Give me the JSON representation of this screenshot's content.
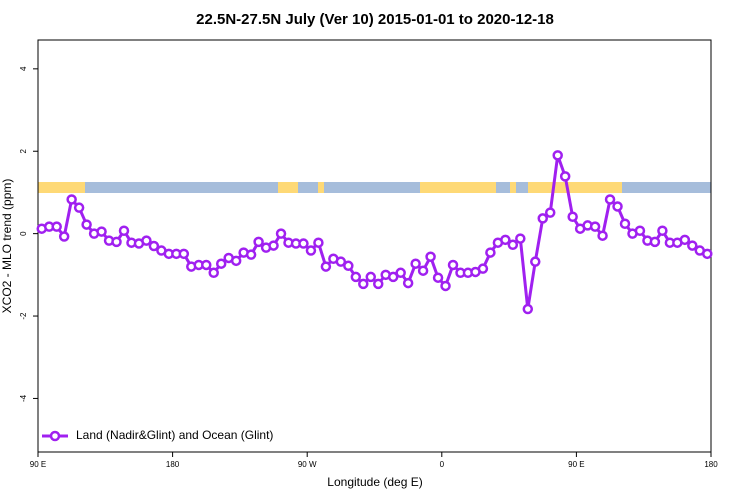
{
  "chart_data": {
    "type": "line",
    "title": "22.5N-27.5N July (Ver 10)   2015-01-01 to 2020-12-18",
    "x_label": "Longitude (deg E)",
    "y_label": "XCO2 - MLO trend (ppm)",
    "x": [
      92.5,
      97.5,
      102.5,
      107.5,
      112.5,
      117.5,
      122.5,
      127.5,
      132.5,
      137.5,
      142.5,
      147.5,
      152.5,
      157.5,
      162.5,
      167.5,
      172.5,
      177.5,
      182.5,
      187.5,
      192.5,
      197.5,
      202.5,
      207.5,
      212.5,
      217.5,
      222.5,
      227.5,
      232.5,
      237.5,
      242.5,
      247.5,
      252.5,
      257.5,
      262.5,
      267.5,
      272.5,
      277.5,
      282.5,
      287.5,
      292.5,
      297.5,
      302.5,
      307.5,
      312.5,
      317.5,
      322.5,
      327.5,
      332.5,
      337.5,
      342.5,
      347.5,
      352.5,
      357.5,
      362.5,
      367.5,
      372.5,
      377.5,
      382.5,
      387.5,
      392.5,
      397.5,
      402.5,
      407.5,
      412.5,
      417.5,
      422.5,
      427.5,
      432.5,
      437.5,
      442.5,
      447.5,
      452.5,
      457.5,
      462.5,
      467.5,
      472.5,
      477.5,
      482.5,
      487.5,
      492.5,
      497.5,
      502.5,
      507.5,
      512.5,
      517.5,
      522.5,
      527.5,
      532.5,
      537.5
    ],
    "series": [
      {
        "name": "Land (Nadir&Glint) and Ocean (Glint)",
        "color": "#a020f0",
        "values": [
          0.12,
          0.17,
          0.17,
          -0.07,
          0.83,
          0.63,
          0.22,
          0.0,
          0.05,
          -0.17,
          -0.2,
          0.07,
          -0.22,
          -0.24,
          -0.17,
          -0.3,
          -0.41,
          -0.49,
          -0.49,
          -0.49,
          -0.8,
          -0.76,
          -0.76,
          -0.95,
          -0.73,
          -0.59,
          -0.66,
          -0.46,
          -0.51,
          -0.2,
          -0.34,
          -0.29,
          0.0,
          -0.22,
          -0.24,
          -0.24,
          -0.41,
          -0.22,
          -0.8,
          -0.61,
          -0.68,
          -0.78,
          -1.05,
          -1.22,
          -1.05,
          -1.22,
          -1.0,
          -1.05,
          -0.95,
          -1.2,
          -0.73,
          -0.9,
          -0.56,
          -1.07,
          -1.27,
          -0.76,
          -0.95,
          -0.95,
          -0.93,
          -0.85,
          -0.46,
          -0.22,
          -0.15,
          -0.27,
          -0.12,
          -1.83,
          -0.68,
          0.37,
          0.51,
          1.9,
          1.39,
          0.41,
          0.12,
          0.2,
          0.17,
          -0.05,
          0.83,
          0.66,
          0.24,
          0.0,
          0.07,
          -0.17,
          -0.2,
          0.07,
          -0.22,
          -0.22,
          -0.15,
          -0.29,
          -0.41,
          -0.49
        ]
      }
    ],
    "xlim": [
      90,
      540
    ],
    "xticks": [
      {
        "value": 90,
        "label": "90 E"
      },
      {
        "value": 180,
        "label": "180"
      },
      {
        "value": 270,
        "label": "90 W"
      },
      {
        "value": 360,
        "label": "0"
      },
      {
        "value": 450,
        "label": "90 E"
      },
      {
        "value": 540,
        "label": "180"
      }
    ],
    "ylim": [
      -5.3,
      4.7
    ],
    "yticks": [
      -4,
      -2,
      0,
      2,
      4
    ],
    "legend": "bottom-left"
  }
}
